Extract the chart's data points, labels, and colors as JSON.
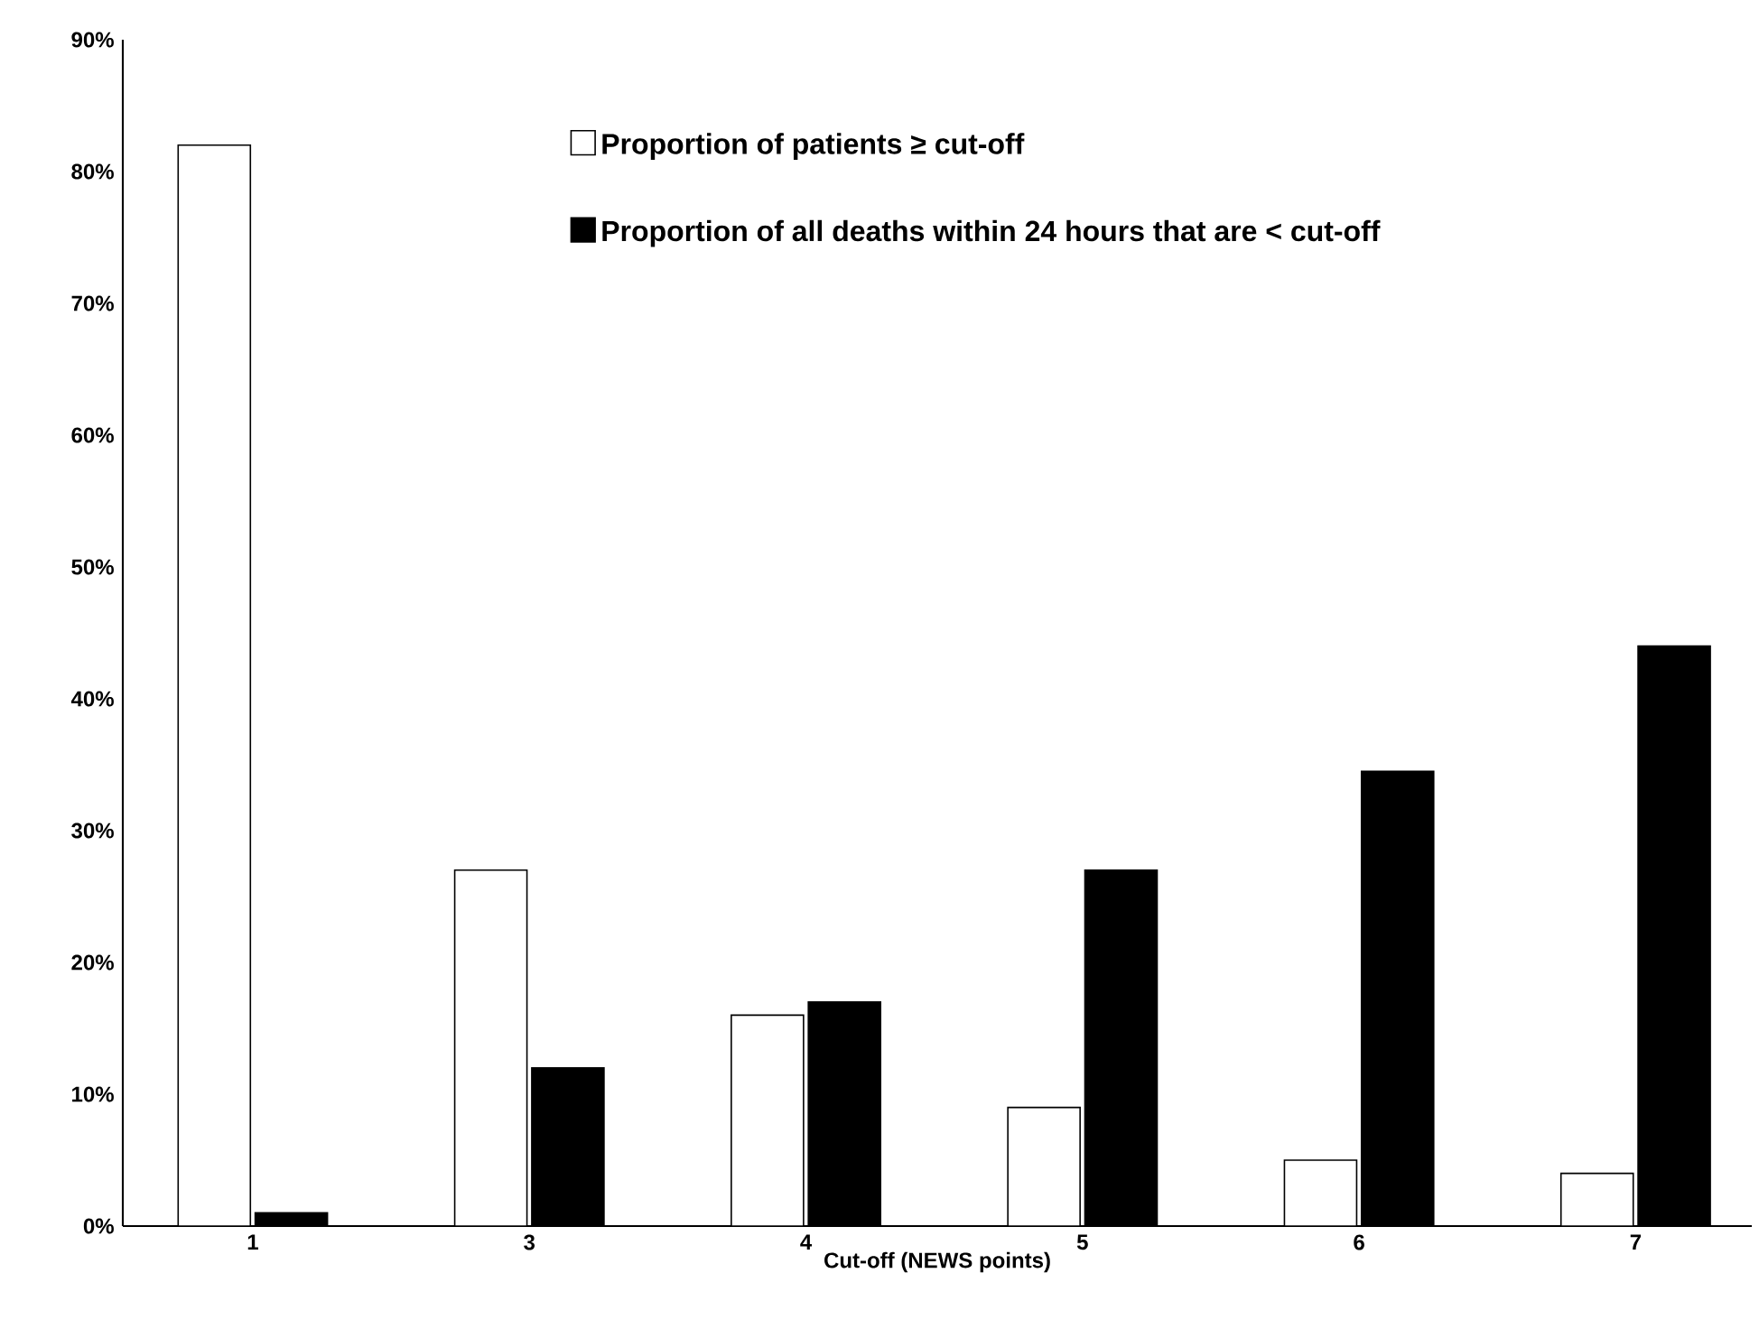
{
  "chart_data": {
    "type": "bar",
    "xlabel": "Cut-off (NEWS points)",
    "categories": [
      "1",
      "3",
      "4",
      "5",
      "6",
      "7"
    ],
    "series": [
      {
        "name": "Proportion of patients ≥ cut-off",
        "color": "#ffffff",
        "values": [
          82,
          27,
          16,
          9,
          5,
          4
        ]
      },
      {
        "name": "Proportion of all deaths within 24 hours that are < cut-off",
        "color": "#000000",
        "values": [
          1,
          12,
          17,
          27,
          34.5,
          44
        ]
      }
    ],
    "ylim": [
      0,
      90
    ],
    "yticks": [
      {
        "value": 0,
        "label": "0%"
      },
      {
        "value": 10,
        "label": "10%"
      },
      {
        "value": 20,
        "label": "20%"
      },
      {
        "value": 30,
        "label": "30%"
      },
      {
        "value": 40,
        "label": "40%"
      },
      {
        "value": 50,
        "label": "50%"
      },
      {
        "value": 60,
        "label": "60%"
      },
      {
        "value": 70,
        "label": "70%"
      },
      {
        "value": 80,
        "label": "80%"
      },
      {
        "value": 90,
        "label": "90%"
      }
    ],
    "grid": false,
    "legend": "top"
  }
}
